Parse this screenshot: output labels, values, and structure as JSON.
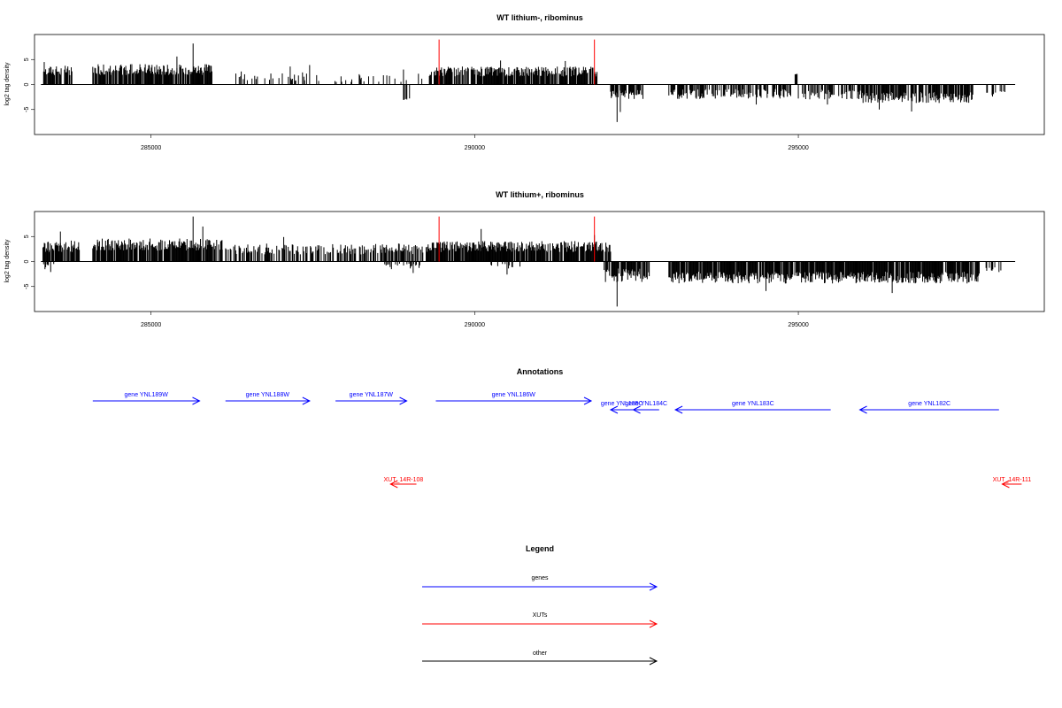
{
  "chart_data": [
    {
      "type": "bar",
      "title": "WT lithium-, ribominus",
      "xlabel": "",
      "ylabel": "log2 tag density",
      "xlim": [
        283200,
        298800
      ],
      "ylim": [
        -10,
        10
      ],
      "x_ticks": [
        285000,
        290000,
        295000
      ],
      "x_tick_labels": [
        "285000",
        "290000",
        "295000"
      ],
      "y_ticks": [
        -5,
        0,
        5
      ],
      "y_tick_labels": [
        "-5",
        "0",
        "5"
      ],
      "baseline_range": [
        283300,
        298350
      ],
      "marker_lines": {
        "x": [
          289450,
          291850
        ],
        "top": 9,
        "color": "#ff0000"
      },
      "bar_color": "#000000",
      "segments": [
        {
          "strand": "+",
          "from": 283320,
          "to": 283780,
          "mean": 2.8,
          "spread": 1.0,
          "density": 0.75,
          "spikes": [
            [
              283350,
              4.5
            ]
          ]
        },
        {
          "strand": "+",
          "from": 284100,
          "to": 285950,
          "mean": 3.0,
          "spread": 1.1,
          "density": 0.85,
          "spikes": [
            [
              285650,
              8.2
            ],
            [
              285400,
              5.6
            ]
          ]
        },
        {
          "strand": "+",
          "from": 286300,
          "to": 287600,
          "mean": 1.7,
          "spread": 1.0,
          "density": 0.25,
          "spikes": [
            [
              287150,
              3.6
            ],
            [
              287450,
              3.9
            ]
          ]
        },
        {
          "strand": "+",
          "from": 287800,
          "to": 289200,
          "mean": 1.3,
          "spread": 0.9,
          "density": 0.15,
          "spikes": [
            [
              288900,
              3.0
            ]
          ]
        },
        {
          "strand": "-",
          "from": 288900,
          "to": 289000,
          "mean": 2.8,
          "spread": 0.3,
          "density": 0.5,
          "spikes": [
            [
              288950,
              2.8
            ]
          ]
        },
        {
          "strand": "+",
          "from": 289300,
          "to": 291900,
          "mean": 2.6,
          "spread": 1.0,
          "density": 0.85,
          "spikes": [
            [
              290400,
              4.8
            ],
            [
              291400,
              4.7
            ]
          ]
        },
        {
          "strand": "-",
          "from": 292100,
          "to": 292600,
          "mean": 2.0,
          "spread": 1.0,
          "density": 0.6,
          "spikes": [
            [
              292200,
              7.5
            ],
            [
              292250,
              5.5
            ]
          ]
        },
        {
          "strand": "-",
          "from": 293000,
          "to": 294900,
          "mean": 1.9,
          "spread": 1.0,
          "density": 0.6,
          "spikes": [
            [
              294350,
              4.0
            ]
          ]
        },
        {
          "strand": "+",
          "from": 294950,
          "to": 295000,
          "mean": 2.0,
          "spread": 0.2,
          "density": 0.5,
          "spikes": [
            [
              294970,
              2.1
            ]
          ]
        },
        {
          "strand": "-",
          "from": 295000,
          "to": 296000,
          "mean": 2.0,
          "spread": 1.0,
          "density": 0.5,
          "spikes": [
            [
              295450,
              4.0
            ]
          ]
        },
        {
          "strand": "-",
          "from": 296000,
          "to": 297700,
          "mean": 2.6,
          "spread": 1.1,
          "density": 0.85,
          "spikes": [
            [
              296250,
              5.0
            ],
            [
              296750,
              5.4
            ]
          ]
        },
        {
          "strand": "-",
          "from": 297900,
          "to": 298200,
          "mean": 1.6,
          "spread": 0.5,
          "density": 0.3,
          "spikes": [
            [
              298000,
              2.4
            ]
          ]
        }
      ]
    },
    {
      "type": "bar",
      "title": "WT lithium+, ribominus",
      "xlabel": "",
      "ylabel": "log2 tag density",
      "xlim": [
        283200,
        298800
      ],
      "ylim": [
        -10,
        10
      ],
      "x_ticks": [
        285000,
        290000,
        295000
      ],
      "x_tick_labels": [
        "285000",
        "290000",
        "295000"
      ],
      "y_ticks": [
        -5,
        0,
        5
      ],
      "y_tick_labels": [
        "-5",
        "0",
        "5"
      ],
      "baseline_range": [
        283300,
        298350
      ],
      "marker_lines": {
        "x": [
          289450,
          291850
        ],
        "top": 9,
        "color": "#ff0000"
      },
      "bar_color": "#000000",
      "segments": [
        {
          "strand": "+",
          "from": 283320,
          "to": 283900,
          "mean": 3.0,
          "spread": 1.2,
          "density": 0.8,
          "spikes": [
            [
              283600,
              6.0
            ]
          ]
        },
        {
          "strand": "-",
          "from": 283320,
          "to": 283600,
          "mean": 1.0,
          "spread": 0.6,
          "density": 0.25,
          "spikes": [
            [
              283450,
              2.1
            ]
          ]
        },
        {
          "strand": "+",
          "from": 284100,
          "to": 286100,
          "mean": 3.4,
          "spread": 1.2,
          "density": 0.9,
          "spikes": [
            [
              285650,
              9.0
            ],
            [
              285800,
              7.0
            ]
          ]
        },
        {
          "strand": "+",
          "from": 286100,
          "to": 289200,
          "mean": 2.5,
          "spread": 1.1,
          "density": 0.55,
          "spikes": [
            [
              287050,
              4.9
            ]
          ]
        },
        {
          "strand": "-",
          "from": 288600,
          "to": 289200,
          "mean": 1.0,
          "spread": 0.6,
          "density": 0.3,
          "spikes": [
            [
              289050,
              2.3
            ]
          ]
        },
        {
          "strand": "+",
          "from": 289250,
          "to": 292100,
          "mean": 3.0,
          "spread": 1.1,
          "density": 0.9,
          "spikes": [
            [
              290100,
              6.5
            ],
            [
              291850,
              5.3
            ]
          ]
        },
        {
          "strand": "-",
          "from": 290200,
          "to": 290700,
          "mean": 0.9,
          "spread": 0.5,
          "density": 0.2,
          "spikes": [
            [
              290500,
              2.6
            ]
          ]
        },
        {
          "strand": "-",
          "from": 292000,
          "to": 292700,
          "mean": 2.8,
          "spread": 1.4,
          "density": 0.8,
          "spikes": [
            [
              292200,
              9.0
            ]
          ]
        },
        {
          "strand": "-",
          "from": 293000,
          "to": 297800,
          "mean": 3.2,
          "spread": 1.2,
          "density": 0.9,
          "spikes": [
            [
              294500,
              5.9
            ],
            [
              296450,
              6.3
            ]
          ]
        },
        {
          "strand": "-",
          "from": 297900,
          "to": 298200,
          "mean": 1.5,
          "spread": 0.5,
          "density": 0.3,
          "spikes": [
            [
              298100,
              2.1
            ]
          ]
        }
      ]
    }
  ],
  "annotations": {
    "title": "Annotations",
    "genes": [
      {
        "label": "gene YNL189W",
        "from": 284100,
        "to": 285750,
        "strand": "+",
        "row": 0
      },
      {
        "label": "gene YNL188W",
        "from": 286150,
        "to": 287450,
        "strand": "+",
        "row": 0
      },
      {
        "label": "gene YNL187W",
        "from": 287850,
        "to": 288950,
        "strand": "+",
        "row": 0
      },
      {
        "label": "gene YNL186W",
        "from": 289400,
        "to": 291800,
        "strand": "+",
        "row": 0
      },
      {
        "label": "gene YNL185C",
        "from": 292100,
        "to": 292450,
        "strand": "-",
        "row": 1
      },
      {
        "label": "gene YNL184C",
        "from": 292450,
        "to": 292850,
        "strand": "-",
        "row": 1
      },
      {
        "label": "gene YNL183C",
        "from": 293100,
        "to": 295500,
        "strand": "-",
        "row": 1
      },
      {
        "label": "gene YNL182C",
        "from": 295950,
        "to": 298100,
        "strand": "-",
        "row": 1
      }
    ],
    "xuts": [
      {
        "label": "XUT_14R-108",
        "from": 288700,
        "to": 289100,
        "strand": "-"
      },
      {
        "label": "XUT_14R-111",
        "from": 298150,
        "to": 298450,
        "strand": "-"
      }
    ]
  },
  "legend": {
    "title": "Legend",
    "items": [
      {
        "label": "genes",
        "color": "#0000ff"
      },
      {
        "label": "XUTs",
        "color": "#ff0000"
      },
      {
        "label": "other",
        "color": "#000000"
      }
    ]
  },
  "colors": {
    "gene": "#0000ff",
    "xut": "#ff0000",
    "other": "#000000",
    "signal": "#000000",
    "marker": "#ff0000"
  }
}
